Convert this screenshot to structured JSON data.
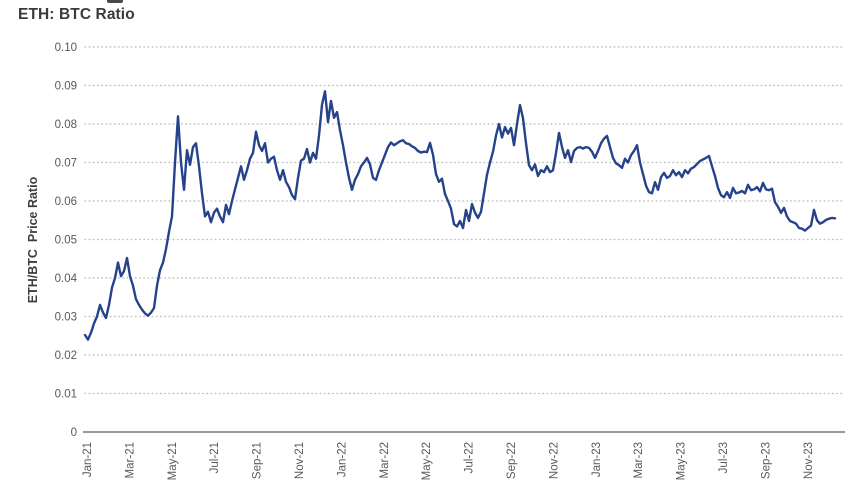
{
  "chart_data": {
    "type": "line",
    "title": "ETH: BTC Ratio",
    "ylabel": "ETH/BTC  Price Ratio",
    "xlabel": "",
    "legend": "none",
    "grid": "horizontal-dotted",
    "ylim": [
      0,
      0.1
    ],
    "x_domain": [
      "Jan-2021",
      "Dec-2023"
    ],
    "x_tick_labels": [
      "Jan-21",
      "Mar-21",
      "May-21",
      "Jul-21",
      "Sep-21",
      "Nov-21",
      "Jan-22",
      "Mar-22",
      "May-22",
      "Jul-22",
      "Sep-22",
      "Nov-22",
      "Jan-23",
      "Mar-23",
      "May-23",
      "Jul-23",
      "Sep-23",
      "Nov-23"
    ],
    "y_ticks": [
      0,
      0.01,
      0.02,
      0.03,
      0.04,
      0.05,
      0.06,
      0.07,
      0.08,
      0.09,
      0.1
    ],
    "y_tick_labels": [
      "0",
      "0.01",
      "0.02",
      "0.03",
      "0.04",
      "0.05",
      "0.06",
      "0.07",
      "0.08",
      "0.09",
      "0.10"
    ],
    "series": [
      {
        "name": "ETH/BTC Price Ratio",
        "color": "#26428b",
        "values": [
          0.0252,
          0.024,
          0.0258,
          0.0282,
          0.03,
          0.033,
          0.031,
          0.0296,
          0.033,
          0.0375,
          0.04,
          0.044,
          0.0405,
          0.0418,
          0.0452,
          0.0405,
          0.038,
          0.0345,
          0.033,
          0.0318,
          0.0308,
          0.0302,
          0.031,
          0.0322,
          0.038,
          0.042,
          0.044,
          0.0475,
          0.052,
          0.056,
          0.07,
          0.082,
          0.07,
          0.0629,
          0.0732,
          0.0694,
          0.074,
          0.075,
          0.069,
          0.062,
          0.056,
          0.0572,
          0.0545,
          0.057,
          0.058,
          0.056,
          0.0545,
          0.059,
          0.0566,
          0.06,
          0.063,
          0.066,
          0.069,
          0.0655,
          0.068,
          0.071,
          0.0725,
          0.078,
          0.0745,
          0.073,
          0.075,
          0.07,
          0.071,
          0.0715,
          0.068,
          0.0655,
          0.068,
          0.065,
          0.0636,
          0.0615,
          0.0605,
          0.066,
          0.0705,
          0.071,
          0.0735,
          0.07,
          0.0725,
          0.071,
          0.077,
          0.085,
          0.0885,
          0.0805,
          0.086,
          0.0816,
          0.0831,
          0.0784,
          0.0745,
          0.07,
          0.066,
          0.0629,
          0.0655,
          0.067,
          0.069,
          0.07,
          0.0712,
          0.0695,
          0.066,
          0.0655,
          0.068,
          0.07,
          0.072,
          0.074,
          0.0752,
          0.0745,
          0.075,
          0.0755,
          0.0758,
          0.075,
          0.0748,
          0.0742,
          0.0738,
          0.073,
          0.0726,
          0.0728,
          0.0727,
          0.0751,
          0.072,
          0.067,
          0.065,
          0.0658,
          0.0618,
          0.06,
          0.058,
          0.054,
          0.0534,
          0.0548,
          0.053,
          0.0577,
          0.0548,
          0.0592,
          0.057,
          0.0556,
          0.0572,
          0.062,
          0.0668,
          0.07,
          0.0728,
          0.077,
          0.08,
          0.0765,
          0.0792,
          0.0775,
          0.079,
          0.0745,
          0.08,
          0.0849,
          0.0815,
          0.075,
          0.0693,
          0.068,
          0.0695,
          0.0665,
          0.068,
          0.0675,
          0.069,
          0.0675,
          0.068,
          0.0725,
          0.0777,
          0.074,
          0.0712,
          0.0732,
          0.0701,
          0.073,
          0.0738,
          0.074,
          0.0736,
          0.074,
          0.0738,
          0.0728,
          0.0712,
          0.073,
          0.075,
          0.0762,
          0.0769,
          0.074,
          0.0712,
          0.0698,
          0.0693,
          0.0686,
          0.071,
          0.07,
          0.0719,
          0.073,
          0.0745,
          0.07,
          0.067,
          0.064,
          0.0623,
          0.062,
          0.0649,
          0.0629,
          0.0662,
          0.0673,
          0.066,
          0.0665,
          0.068,
          0.0667,
          0.0675,
          0.0662,
          0.068,
          0.0672,
          0.0684,
          0.0688,
          0.0696,
          0.0704,
          0.0708,
          0.0712,
          0.0717,
          0.069,
          0.0665,
          0.0634,
          0.0615,
          0.061,
          0.0623,
          0.0608,
          0.0634,
          0.062,
          0.0622,
          0.0626,
          0.062,
          0.0642,
          0.0628,
          0.063,
          0.0636,
          0.0625,
          0.0647,
          0.063,
          0.0628,
          0.0632,
          0.0597,
          0.0585,
          0.0569,
          0.0582,
          0.056,
          0.0548,
          0.0545,
          0.0541,
          0.053,
          0.0528,
          0.0523,
          0.053,
          0.0536,
          0.0577,
          0.055,
          0.0541,
          0.0545,
          0.0551,
          0.0554,
          0.0556,
          0.0555
        ]
      }
    ]
  },
  "colors": {
    "background": "#ffffff",
    "title_text": "#3b3b3b",
    "axis_title_text": "#3d3d3d",
    "tick_text": "#595959",
    "grid": "#c2c2c2",
    "axis_line": "#9b9b9b",
    "line": "#26428b"
  }
}
